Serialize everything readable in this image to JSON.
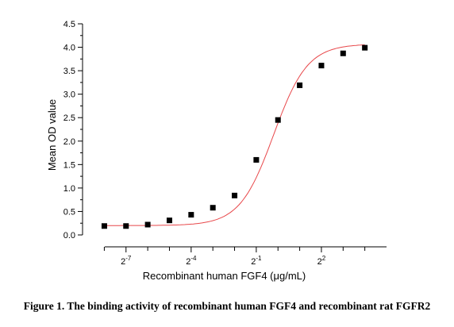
{
  "chart_data": {
    "type": "scatter",
    "title": "",
    "xlabel": "Recombinant human FGF4 (μg/mL)",
    "ylabel": "Mean OD value",
    "x_scale": "log2",
    "xlim": [
      0.00195,
      32
    ],
    "ylim": [
      0,
      4.5
    ],
    "y_ticks": [
      "0.0",
      "0.5",
      "1.0",
      "1.5",
      "2.0",
      "2.5",
      "3.0",
      "3.5",
      "4.0",
      "4.5"
    ],
    "x_tick_labels": [
      {
        "base": "2",
        "exp": "-7",
        "value": 0.0078125
      },
      {
        "base": "2",
        "exp": "-4",
        "value": 0.0625
      },
      {
        "base": "2",
        "exp": "-1",
        "value": 0.5
      },
      {
        "base": "2",
        "exp": "2",
        "value": 4
      }
    ],
    "grid": false,
    "legend": false,
    "fit_curve": "sigmoidal (red)",
    "marker_color": "#000000",
    "curve_color": "#e8474a",
    "series": [
      {
        "x": [
          0.00391,
          0.00781,
          0.01563,
          0.03125,
          0.0625,
          0.125,
          0.25,
          0.5,
          1,
          2,
          4,
          8,
          16
        ],
        "y": [
          0.19,
          0.19,
          0.22,
          0.31,
          0.43,
          0.58,
          0.84,
          1.6,
          2.45,
          3.19,
          3.61,
          3.87,
          3.99
        ]
      }
    ]
  },
  "caption": "Figure 1. The binding activity of recombinant human FGF4 and recombinant rat FGFR2"
}
